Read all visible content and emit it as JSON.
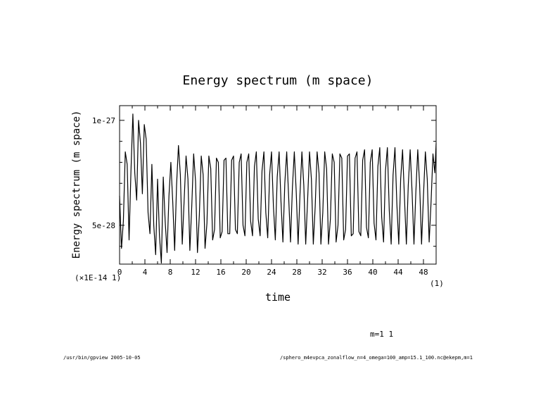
{
  "chart_data": {
    "type": "line",
    "title": "Energy spectrum (m space)",
    "xlabel": "time",
    "ylabel": "Energy spectrum (m space)",
    "x_multiplier_note": "(×1E-14 1)",
    "x_unit_note": "(1)",
    "xlim": [
      0,
      50
    ],
    "ylim": [
      3.15e-28,
      1.07e-27
    ],
    "xticks": [
      0,
      4,
      8,
      12,
      16,
      20,
      24,
      28,
      32,
      36,
      40,
      44,
      48
    ],
    "xtick_labels": [
      "0",
      "4",
      "8",
      "12",
      "16",
      "20",
      "24",
      "28",
      "32",
      "36",
      "40",
      "44",
      "48"
    ],
    "yticks": [
      5e-28,
      1e-27
    ],
    "ytick_labels": [
      "5e-28",
      "1e-27"
    ],
    "grid": false,
    "series_label": "m=1 1",
    "series": [
      {
        "x": [
          0.0,
          0.3,
          0.6,
          0.9,
          1.2,
          1.5,
          1.8,
          2.1,
          2.4,
          2.7,
          3.0,
          3.3,
          3.6,
          3.9,
          4.2,
          4.5,
          4.8,
          5.1,
          5.4,
          5.7,
          6.0,
          6.3,
          6.6,
          6.9,
          7.2,
          7.5,
          7.8,
          8.1,
          8.4,
          8.7,
          9.0,
          9.3,
          9.6,
          9.9,
          10.2,
          10.5,
          10.8,
          11.1,
          11.4,
          11.7,
          12.0,
          12.3,
          12.6,
          12.9,
          13.2,
          13.5,
          13.8,
          14.1,
          14.4,
          14.7,
          15.0,
          15.3,
          15.6,
          15.9,
          16.2,
          16.5,
          16.8,
          17.1,
          17.4,
          17.7,
          18.0,
          18.3,
          18.6,
          18.9,
          19.2,
          19.5,
          19.8,
          20.1,
          20.4,
          20.7,
          21.0,
          21.3,
          21.6,
          21.9,
          22.2,
          22.5,
          22.8,
          23.1,
          23.4,
          23.7,
          24.0,
          24.3,
          24.6,
          24.9,
          25.2,
          25.5,
          25.8,
          26.1,
          26.4,
          26.7,
          27.0,
          27.3,
          27.6,
          27.9,
          28.2,
          28.5,
          28.8,
          29.1,
          29.4,
          29.7,
          30.0,
          30.3,
          30.6,
          30.9,
          31.2,
          31.5,
          31.8,
          32.1,
          32.4,
          32.7,
          33.0,
          33.3,
          33.6,
          33.9,
          34.2,
          34.5,
          34.8,
          35.1,
          35.4,
          35.7,
          36.0,
          36.3,
          36.6,
          36.9,
          37.2,
          37.5,
          37.8,
          38.1,
          38.4,
          38.7,
          39.0,
          39.3,
          39.6,
          39.9,
          40.2,
          40.5,
          40.8,
          41.1,
          41.4,
          41.7,
          42.0,
          42.3,
          42.6,
          42.9,
          43.2,
          43.5,
          43.8,
          44.1,
          44.4,
          44.7,
          45.0,
          45.3,
          45.6,
          45.9,
          46.2,
          46.5,
          46.8,
          47.1,
          47.4,
          47.7,
          48.0,
          48.3,
          48.6,
          48.9,
          49.2,
          49.5,
          49.8,
          50.0
        ],
        "values": [
          6.4e-28,
          3.9e-28,
          5.2e-28,
          8.5e-28,
          7.9e-28,
          4.3e-28,
          7.6e-28,
          1.03e-27,
          7.5e-28,
          6.2e-28,
          1e-27,
          8.9e-28,
          6.5e-28,
          9.8e-28,
          9.1e-28,
          5.6e-28,
          4.6e-28,
          7.9e-28,
          5e-28,
          3.6e-28,
          7.2e-28,
          4.5e-28,
          3.2e-28,
          7.3e-28,
          5.2e-28,
          3.7e-28,
          6.4e-28,
          8e-28,
          6.1e-28,
          3.8e-28,
          6.9e-28,
          8.8e-28,
          7.4e-28,
          4.1e-28,
          6.2e-28,
          8.3e-28,
          7.2e-28,
          3.8e-28,
          5.9e-28,
          8.4e-28,
          7.1e-28,
          3.7e-28,
          5.5e-28,
          8.3e-28,
          7.4e-28,
          3.9e-28,
          5.1e-28,
          8.3e-28,
          7.7e-28,
          4.3e-28,
          4.8e-28,
          8.2e-28,
          8e-28,
          4.4e-28,
          4.7e-28,
          8.1e-28,
          8.2e-28,
          4.6e-28,
          4.6e-28,
          8.1e-28,
          8.3e-28,
          4.8e-28,
          4.6e-28,
          8e-28,
          8.4e-28,
          5e-28,
          4.5e-28,
          8e-28,
          8.4e-28,
          5.2e-28,
          4.5e-28,
          7.8e-28,
          8.5e-28,
          5.3e-28,
          4.5e-28,
          7.6e-28,
          8.5e-28,
          5.6e-28,
          4.4e-28,
          7.4e-28,
          8.5e-28,
          5.9e-28,
          4.3e-28,
          7.3e-28,
          8.5e-28,
          6.1e-28,
          4.2e-28,
          7e-28,
          8.5e-28,
          6.4e-28,
          4.2e-28,
          6.8e-28,
          8.5e-28,
          6.6e-28,
          4.1e-28,
          6.5e-28,
          8.5e-28,
          6.9e-28,
          4.1e-28,
          6.2e-28,
          8.5e-28,
          7.2e-28,
          4.1e-28,
          5.9e-28,
          8.5e-28,
          7.5e-28,
          4.1e-28,
          5.6e-28,
          8.5e-28,
          7.7e-28,
          4.1e-28,
          5.3e-28,
          8.4e-28,
          8e-28,
          4.2e-28,
          5e-28,
          8.4e-28,
          8.2e-28,
          4.3e-28,
          4.8e-28,
          8.3e-28,
          8.4e-28,
          4.5e-28,
          4.6e-28,
          8.2e-28,
          8.5e-28,
          4.7e-28,
          4.5e-28,
          8.1e-28,
          8.6e-28,
          4.9e-28,
          4.4e-28,
          8e-28,
          8.6e-28,
          5.1e-28,
          4.3e-28,
          7.8e-28,
          8.7e-28,
          5.4e-28,
          4.2e-28,
          7.6e-28,
          8.7e-28,
          5.7e-28,
          4.1e-28,
          7.4e-28,
          8.7e-28,
          6e-28,
          4.1e-28,
          7.2e-28,
          8.6e-28,
          6.3e-28,
          4.1e-28,
          6.9e-28,
          8.6e-28,
          6.6e-28,
          4.1e-28,
          6.6e-28,
          8.6e-28,
          6.9e-28,
          4.1e-28,
          6.4e-28,
          8.5e-28,
          7.2e-28,
          4.2e-28,
          6.1e-28,
          8.4e-28,
          7.5e-28,
          8.9e-28
        ]
      }
    ]
  },
  "footer": {
    "left": "/usr/bin/gpview  2005-10-05",
    "right": "/sphero_m4evpca_zonalflow_n=4_omega=100_amp=15.1_100.nc@ekepm,m=1"
  }
}
